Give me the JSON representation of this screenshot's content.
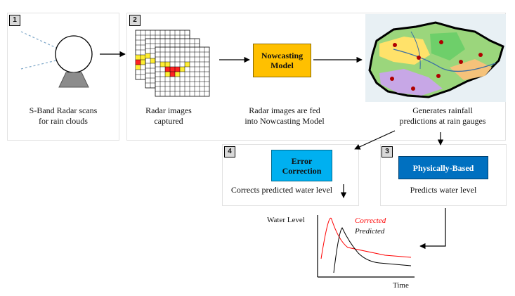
{
  "panels": [
    {
      "number": "1",
      "caption": "S-Band Radar scans\nfor rain clouds"
    },
    {
      "number": "2",
      "caption": "Radar images\ncaptured"
    },
    {
      "number": "4",
      "caption": "Corrects predicted water level"
    },
    {
      "number": "3",
      "caption": "Predicts water level"
    }
  ],
  "nowcasting": {
    "label": "Nowcasting\nModel",
    "caption": "Radar images are fed\ninto Nowcasting Model",
    "color": "#FFC000"
  },
  "map_caption": "Generates rainfall\npredictions at rain gauges",
  "error_correction": {
    "label": "Error\nCorrection",
    "color": "#00B0F0"
  },
  "physically_based": {
    "label": "Physically-Based",
    "color": "#0070C0"
  },
  "hydrograph": {
    "ylabel": "Water Level",
    "xlabel": "Time",
    "series": [
      {
        "name": "Corrected",
        "color": "#ff0000"
      },
      {
        "name": "Predicted",
        "color": "#000000"
      }
    ]
  }
}
